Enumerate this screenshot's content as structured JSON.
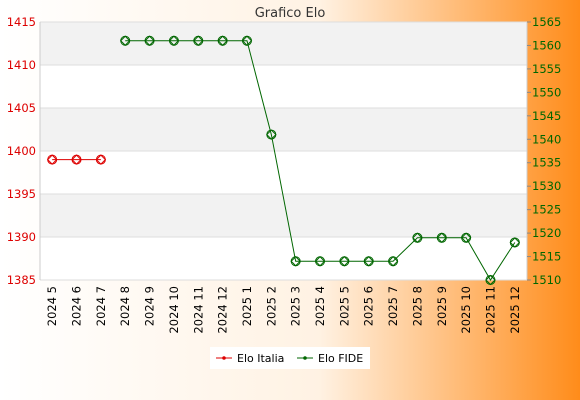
{
  "chart_data": {
    "type": "line",
    "title": "Grafico Elo",
    "categories": [
      "2024 5",
      "2024 6",
      "2024 7",
      "2024 8",
      "2024 9",
      "2024 10",
      "2024 11",
      "2024 12",
      "2025 1",
      "2025 2",
      "2025 3",
      "2025 4",
      "2025 5",
      "2025 6",
      "2025 7",
      "2025 8",
      "2025 9",
      "2025 10",
      "2025 11",
      "2025 12"
    ],
    "y_left": {
      "min": 1385,
      "max": 1415,
      "ticks": [
        1385,
        1390,
        1395,
        1400,
        1405,
        1410,
        1415
      ],
      "color": "#dd0000"
    },
    "y_right": {
      "min": 1510,
      "max": 1565,
      "ticks": [
        1510,
        1515,
        1520,
        1525,
        1530,
        1535,
        1540,
        1545,
        1550,
        1555,
        1560,
        1565
      ],
      "color": "#006600"
    },
    "series": [
      {
        "name": "Elo Italia",
        "axis": "left",
        "color": "#dd0000",
        "values": [
          1399,
          1399,
          1399,
          null,
          null,
          null,
          null,
          null,
          null,
          null,
          null,
          null,
          null,
          null,
          null,
          null,
          null,
          null,
          null,
          null
        ]
      },
      {
        "name": "Elo FIDE",
        "axis": "right",
        "color": "#006600",
        "values": [
          null,
          null,
          null,
          1561,
          1561,
          1561,
          1561,
          1561,
          1561,
          1541,
          1514,
          1514,
          1514,
          1514,
          1514,
          1519,
          1519,
          1519,
          1510,
          1518
        ]
      }
    ],
    "grid": true,
    "legend_position": "bottom"
  },
  "colors": {
    "background_left": "#ffffff",
    "background_right": "#ff8c1a",
    "band_light": "#f2f2f2",
    "band_white": "#ffffff",
    "grid": "#dddddd",
    "title": "#333333"
  }
}
